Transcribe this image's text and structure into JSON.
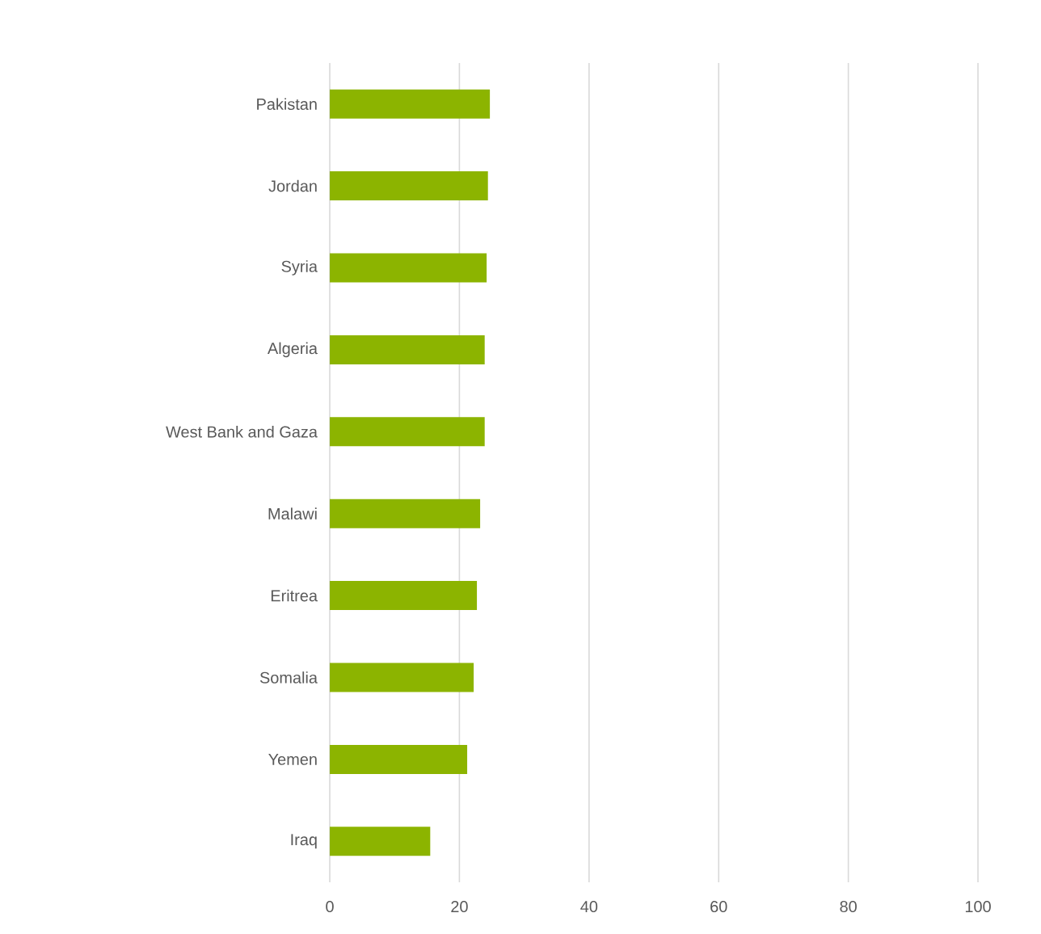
{
  "chart_data": {
    "type": "bar",
    "orientation": "horizontal",
    "categories": [
      "Pakistan",
      "Jordan",
      "Syria",
      "Algeria",
      "West Bank and Gaza",
      "Malawi",
      "Eritrea",
      "Somalia",
      "Yemen",
      "Iraq"
    ],
    "values": [
      24.7,
      24.4,
      24.2,
      23.9,
      23.9,
      23.2,
      22.7,
      22.2,
      21.2,
      15.5
    ],
    "color": "#8cb400",
    "xlim": [
      0,
      100
    ],
    "xticks": [
      0,
      20,
      40,
      60,
      80,
      100
    ],
    "grid": "x"
  }
}
